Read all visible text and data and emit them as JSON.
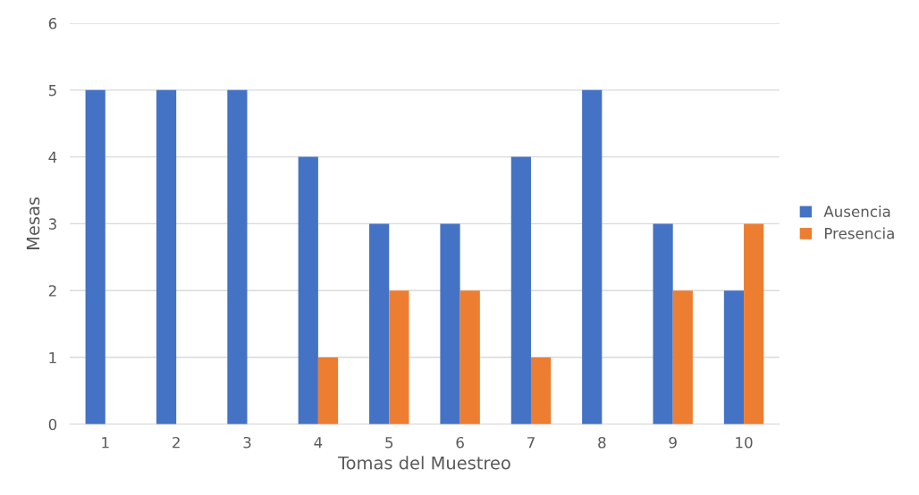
{
  "chart_data": {
    "type": "bar",
    "xlabel": "Tomas del Muestreo",
    "ylabel": "Mesas",
    "categories": [
      "1",
      "2",
      "3",
      "4",
      "5",
      "6",
      "7",
      "8",
      "9",
      "10"
    ],
    "series": [
      {
        "name": "Ausencia",
        "color": "#4472c4",
        "values": [
          5,
          5,
          5,
          4,
          3,
          3,
          4,
          5,
          3,
          2
        ]
      },
      {
        "name": "Presencia",
        "color": "#ed7d31",
        "values": [
          0,
          0,
          0,
          1,
          2,
          2,
          1,
          0,
          2,
          3
        ]
      }
    ],
    "ylim": [
      0,
      6
    ],
    "yticks": [
      0,
      1,
      2,
      3,
      4,
      5,
      6
    ],
    "grid": "y",
    "legend": "right"
  }
}
